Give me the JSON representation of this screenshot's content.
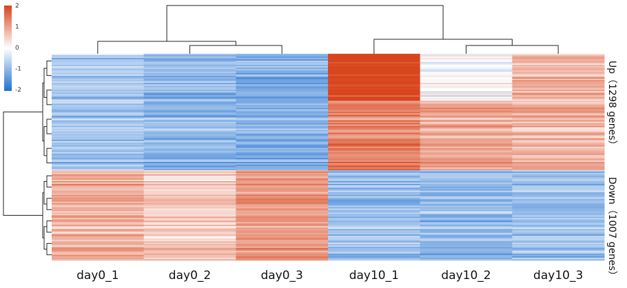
{
  "chart_data": {
    "type": "heatmap",
    "title": "",
    "columns": [
      "day0_1",
      "day0_2",
      "day0_3",
      "day10_1",
      "day10_2",
      "day10_3"
    ],
    "row_groups": [
      {
        "label": "Up（1298 genes）",
        "genes": 1298,
        "mean_values": [
          -0.8,
          -1.0,
          -1.1,
          1.6,
          0.6,
          0.8
        ]
      },
      {
        "label": "Down（1007 genes）",
        "genes": 1007,
        "mean_values": [
          0.9,
          0.6,
          1.1,
          -0.9,
          -1.0,
          -0.9
        ]
      }
    ],
    "color_scale": {
      "min": -2,
      "max": 2,
      "ticks": [
        "2",
        "1",
        "0",
        "-1",
        "-2"
      ],
      "low_color": "#1f6fd0",
      "mid_color": "#ffffff",
      "high_color": "#d8451c"
    },
    "column_dendrogram": true,
    "row_dendrogram": true
  }
}
